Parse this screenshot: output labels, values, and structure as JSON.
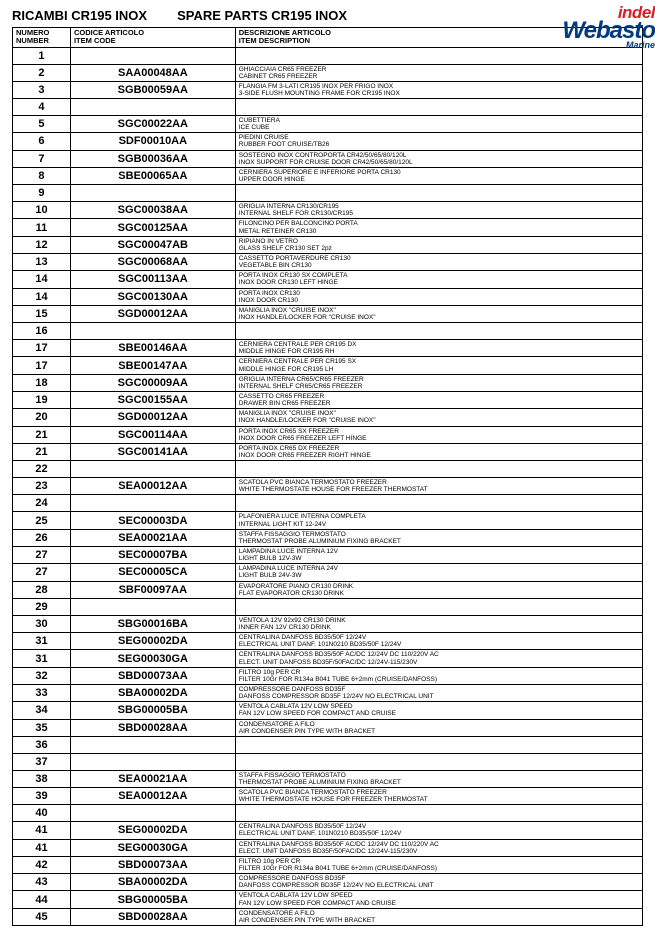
{
  "title_left": "RICAMBI  CR195 INOX",
  "title_right": "SPARE PARTS  CR195 INOX",
  "logo": {
    "indel": "indel",
    "webasto": "Webasto",
    "marine": "Marine"
  },
  "headers": {
    "num": "NUMERO\nNUMBER",
    "code": "CODICE ARTICOLO\nITEM CODE",
    "desc": "DESCRIZIONE ARTICOLO\nITEM DESCRIPTION"
  },
  "rows": [
    {
      "n": "1",
      "code": "",
      "desc": ""
    },
    {
      "n": "2",
      "code": "SAA00048AA",
      "desc": "GHIACCIAIA CR65 FREEZER\nCABINET CR65 FREEZER"
    },
    {
      "n": "3",
      "code": "SGB00059AA",
      "desc": "FLANGIA FM 3-LATI CR195 INOX PER FRIGO INOX\n3-SIDE FLUSH MOUNTING FRAME FOR CR195 INOX"
    },
    {
      "n": "4",
      "code": "",
      "desc": ""
    },
    {
      "n": "5",
      "code": "SGC00022AA",
      "desc": "CUBETTIERA\nICE CUBE"
    },
    {
      "n": "6",
      "code": "SDF00010AA",
      "desc": "PIEDINI CRUISE\nRUBBER FOOT CRUISE/TB26"
    },
    {
      "n": "7",
      "code": "SGB00036AA",
      "desc": "SOSTEGNO INOX CONTROPORTA CR42/50/65/80/120L\nINOX SUPPORT FOR CRUISE DOOR CR42/50/65/80/120L"
    },
    {
      "n": "8",
      "code": "SBE00065AA",
      "desc": "CERNIERA SUPERIORE E INFERIORE PORTA CR130\nUPPER DOOR HINGE"
    },
    {
      "n": "9",
      "code": "",
      "desc": ""
    },
    {
      "n": "10",
      "code": "SGC00038AA",
      "desc": "GRIGLIA INTERNA CR130/CR195\nINTERNAL SHELF FOR CR130/CR195"
    },
    {
      "n": "11",
      "code": "SGC00125AA",
      "desc": "FILONCINO PER BALCONCINO PORTA\nMETAL RETEINER CR130"
    },
    {
      "n": "12",
      "code": "SGC00047AB",
      "desc": "RIPIANO IN VETRO\nGLASS SHELF CR130 SET 2pz"
    },
    {
      "n": "13",
      "code": "SGC00068AA",
      "desc": "CASSETTO PORTAVERDURE CR130\nVEGETABLE BIN CR130"
    },
    {
      "n": "14",
      "code": "SGC00113AA",
      "desc": "PORTA INOX CR130 SX COMPLETA\nINOX DOOR CR130 LEFT HINGE"
    },
    {
      "n": "14",
      "code": "SGC00130AA",
      "desc": "PORTA INOX CR130\nINOX DOOR CR130"
    },
    {
      "n": "15",
      "code": "SGD00012AA",
      "desc": "MANIGLIA INOX \"CRUISE INOX\"\nINOX HANDLE/LOCKER FOR \"CRUISE INOX\""
    },
    {
      "n": "16",
      "code": "",
      "desc": ""
    },
    {
      "n": "17",
      "code": "SBE00146AA",
      "desc": "CERNIERA CENTRALE PER CR195 DX\nMIDDLE HINGE FOR CR195 RH"
    },
    {
      "n": "17",
      "code": "SBE00147AA",
      "desc": "CERNIERA CENTRALE PER CR195 SX\nMIDDLE HINGE FOR CR195 LH"
    },
    {
      "n": "18",
      "code": "SGC00009AA",
      "desc": "GRIGLIA INTERNA CR65/CR65 FREEZER\nINTERNAL SHELF CR65/CR65 FREEZER"
    },
    {
      "n": "19",
      "code": "SGC00155AA",
      "desc": "CASSETTO CR65 FREEZER\nDRAWER BIN CR65 FREEZER"
    },
    {
      "n": "20",
      "code": "SGD00012AA",
      "desc": "MANIGLIA INOX \"CRUISE INOX\"\nINOX HANDLE/LOCKER FOR \"CRUISE INOX\""
    },
    {
      "n": "21",
      "code": "SGC00114AA",
      "desc": "PORTA INOX CR65 SX FREEZER\nINOX DOOR CR65 FREEZER LEFT HINGE"
    },
    {
      "n": "21",
      "code": "SGC00141AA",
      "desc": "PORTA INOX CR65 DX FREEZER\nINOX DOOR CR65 FREEZER RIGHT HINGE"
    },
    {
      "n": "22",
      "code": "",
      "desc": ""
    },
    {
      "n": "23",
      "code": "SEA00012AA",
      "desc": "SCATOLA PVC BIANCA TERMOSTATO FREEZER\nWHITE THERMOSTATE HOUSE FOR FREEZER THERMOSTAT"
    },
    {
      "n": "24",
      "code": "",
      "desc": ""
    },
    {
      "n": "25",
      "code": "SEC00003DA",
      "desc": "PLAFONIERA LUCE INTERNA COMPLETA\nINTERNAL LIGHT KIT 12-24V"
    },
    {
      "n": "26",
      "code": "SEA00021AA",
      "desc": "STAFFA FISSAGGIO TERMOSTATO\nTHERMOSTAT PROBE ALUMINIUM FIXING BRACKET"
    },
    {
      "n": "27",
      "code": "SEC00007BA",
      "desc": "LAMPADINA LUCE INTERNA 12V\nLIGHT BULB 12V-3W"
    },
    {
      "n": "27",
      "code": "SEC00005CA",
      "desc": "LAMPADINA LUCE INTERNA 24V\nLIGHT BULB 24V-3W"
    },
    {
      "n": "28",
      "code": "SBF00097AA",
      "desc": "EVAPORATORE PIANO CR130 DRINK\nFLAT EVAPORATOR CR130 DRINK"
    },
    {
      "n": "29",
      "code": "",
      "desc": ""
    },
    {
      "n": "30",
      "code": "SBG00016BA",
      "desc": "VENTOLA 12V 92x92 CR130 DRINK\nINNER FAN 12V CR130 DRINK"
    },
    {
      "n": "31",
      "code": "SEG00002DA",
      "desc": "CENTRALINA DANFOSS BD35/50F 12/24V\nELECTRICAL UNIT DANF. 101N0210 BD35/50F 12/24V"
    },
    {
      "n": "31",
      "code": "SEG00030GA",
      "desc": "CENTRALINA DANFOSS BD35/50F AC/DC 12/24V DC 110/220V AC\nELECT. UNIT DANFOSS BD35F/50FAC/DC 12/24V-115/230V"
    },
    {
      "n": "32",
      "code": "SBD00073AA",
      "desc": "FILTRO 10g PER CR\nFILTER 10Gr FOR R134a B041 TUBE 6+2mm (CRUISE/DANFOSS)"
    },
    {
      "n": "33",
      "code": "SBA00002DA",
      "desc": "COMPRESSORE DANFOSS BD35F\nDANFOSS COMPRESSOR BD35F 12/24V NO ELECTRICAL UNIT"
    },
    {
      "n": "34",
      "code": "SBG00005BA",
      "desc": "VENTOLA CABLATA 12V LOW SPEED\nFAN 12V LOW SPEED FOR COMPACT AND CRUISE"
    },
    {
      "n": "35",
      "code": "SBD00028AA",
      "desc": "CONDENSATORE A FILO\nAIR CONDENSER PIN TYPE WITH BRACKET"
    },
    {
      "n": "36",
      "code": "",
      "desc": ""
    },
    {
      "n": "37",
      "code": "",
      "desc": ""
    },
    {
      "n": "38",
      "code": "SEA00021AA",
      "desc": "STAFFA FISSAGGIO TERMOSTATO\nTHERMOSTAT PROBE ALUMINIUM FIXING BRACKET"
    },
    {
      "n": "39",
      "code": "SEA00012AA",
      "desc": "SCATOLA PVC BIANCA TERMOSTATO FREEZER\nWHITE THERMOSTATE HOUSE FOR FREEZER THERMOSTAT"
    },
    {
      "n": "40",
      "code": "",
      "desc": ""
    },
    {
      "n": "41",
      "code": "SEG00002DA",
      "desc": "CENTRALINA DANFOSS BD35/50F 12/24V\nELECTRICAL UNIT DANF. 101N0210 BD35/50F 12/24V"
    },
    {
      "n": "41",
      "code": "SEG00030GA",
      "desc": "CENTRALINA DANFOSS BD35/50F AC/DC 12/24V DC 110/220V AC\nELECT. UNIT DANFOSS BD35F/50FAC/DC 12/24V-115/230V"
    },
    {
      "n": "42",
      "code": "SBD00073AA",
      "desc": "FILTRO 10g PER CR\nFILTER 10Gr FOR R134a B041 TUBE 6+2mm (CRUISE/DANFOSS)"
    },
    {
      "n": "43",
      "code": "SBA00002DA",
      "desc": "COMPRESSORE DANFOSS BD35F\nDANFOSS COMPRESSOR BD35F 12/24V NO ELECTRICAL UNIT"
    },
    {
      "n": "44",
      "code": "SBG00005BA",
      "desc": "VENTOLA CABLATA 12V LOW SPEED\nFAN 12V LOW SPEED FOR COMPACT AND CRUISE"
    },
    {
      "n": "45",
      "code": "SBD00028AA",
      "desc": "CONDENSATORE A FILO\nAIR CONDENSER PIN TYPE WITH BRACKET"
    }
  ]
}
